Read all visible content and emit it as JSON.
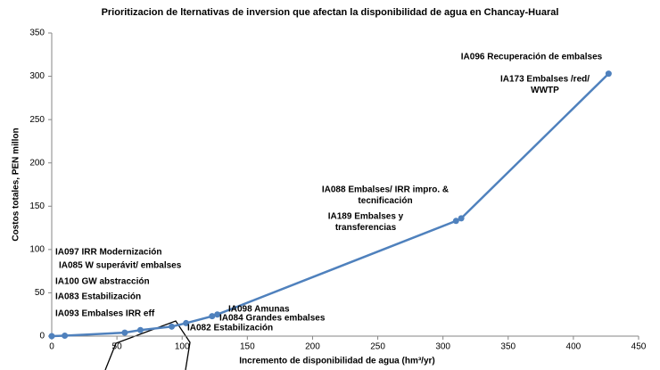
{
  "chart_data": {
    "type": "line",
    "title": "Prioritizacion de lternativas de inversion que afectan la disponibilidad de agua en Chancay-Huaral",
    "xlabel": "Incremento de disponibilidad de agua (hm³/yr)",
    "ylabel": "Costos totales, PEN millon",
    "series": [
      {
        "name": "Costos",
        "color": "#4f81bd",
        "x": [
          0,
          10,
          56,
          68,
          92,
          103,
          123,
          127,
          310,
          314,
          427
        ],
        "values": [
          0,
          0.5,
          4,
          7,
          11,
          15,
          23,
          25,
          133,
          136,
          303
        ]
      }
    ],
    "xlim": [
      0,
      450
    ],
    "xticks": [
      0,
      50,
      100,
      150,
      200,
      250,
      300,
      350,
      400,
      450
    ],
    "ylim": [
      0,
      350
    ],
    "yticks": [
      0,
      50,
      100,
      150,
      200,
      250,
      300,
      350
    ],
    "grid": false,
    "annotations": [
      {
        "lines": [
          "IA096 Recuperación de embalses"
        ]
      },
      {
        "lines": [
          "IA173 Embalses /red/",
          "WWTP"
        ]
      },
      {
        "lines": [
          "IA088 Embalses/ IRR impro. &",
          "tecnificación"
        ]
      },
      {
        "lines": [
          "IA189 Embalses y",
          "transferencias"
        ]
      },
      {
        "lines": [
          "IA097 IRR Modernización"
        ]
      },
      {
        "lines": [
          "IA085 W superávit/ embalses"
        ]
      },
      {
        "lines": [
          "IA100 GW abstracción"
        ]
      },
      {
        "lines": [
          "IA083 Estabilización"
        ]
      },
      {
        "lines": [
          "IA093 Embalses IRR eff"
        ]
      },
      {
        "lines": [
          "IA098 Amunas"
        ]
      },
      {
        "lines": [
          "IA084 Grandes embalses"
        ]
      },
      {
        "lines": [
          "IA082 Estabilización"
        ]
      }
    ]
  }
}
